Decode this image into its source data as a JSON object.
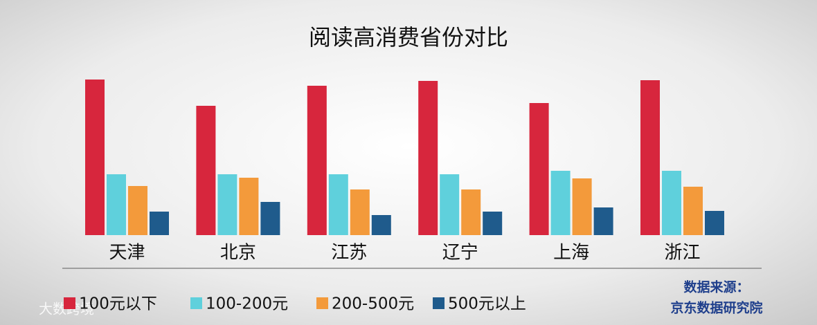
{
  "chart_data": {
    "type": "bar",
    "title": "阅读高消费省份对比",
    "categories": [
      "天津",
      "北京",
      "江苏",
      "辽宁",
      "上海",
      "浙江"
    ],
    "series": [
      {
        "name": "100元以下",
        "color": "#d7263d",
        "values": [
          225,
          187,
          216,
          223,
          191,
          224
        ]
      },
      {
        "name": "100-200元",
        "color": "#5fd0dc",
        "values": [
          88,
          88,
          88,
          88,
          93,
          93
        ]
      },
      {
        "name": "200-500元",
        "color": "#f39a3b",
        "values": [
          71,
          83,
          66,
          66,
          82,
          70
        ]
      },
      {
        "name": "500元以上",
        "color": "#1f5b8c",
        "values": [
          34,
          48,
          29,
          34,
          40,
          35
        ]
      }
    ],
    "source": [
      "数据来源：",
      "京东数据研究院"
    ],
    "watermark": "大数跨境"
  }
}
